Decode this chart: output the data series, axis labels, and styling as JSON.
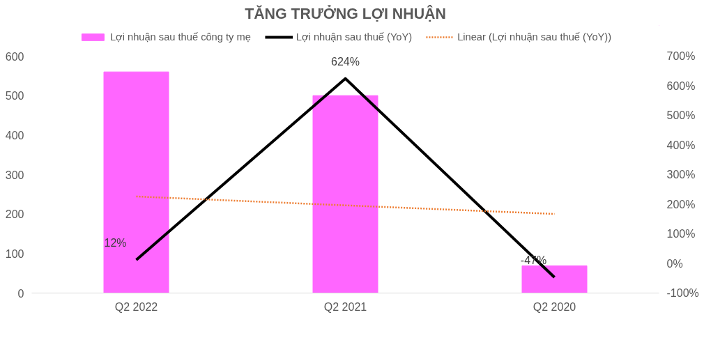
{
  "chart_data": {
    "type": "bar",
    "title": "TĂNG TRƯỞNG LỢI NHUẬN",
    "categories": [
      "Q2 2022",
      "Q2 2021",
      "Q2 2020"
    ],
    "series": [
      {
        "name": "Lợi nhuận sau thuế công ty mẹ",
        "color": "#ff66ff",
        "values": [
          560,
          500,
          69
        ]
      },
      {
        "name": "Lợi nhuận sau thuế (YoY)",
        "type": "line",
        "axis": "y2",
        "color": "#000000",
        "values": [
          12,
          624,
          -47
        ],
        "value_labels": [
          "12%",
          "624%",
          "-47%"
        ]
      },
      {
        "name": "Linear (Lợi nhuận sau thuế (YoY))",
        "type": "line",
        "axis": "y2",
        "color": "#ed7d31",
        "line_style": "dotted",
        "values": [
          226,
          196,
          167
        ]
      }
    ],
    "ylim": [
      0,
      600
    ],
    "yticks": [
      0,
      100,
      200,
      300,
      400,
      500,
      600
    ],
    "y2lim": [
      -100,
      700
    ],
    "y2ticks": [
      {
        "value": -100,
        "label": "-100%"
      },
      {
        "value": 0,
        "label": "0%"
      },
      {
        "value": 100,
        "label": "100%"
      },
      {
        "value": 200,
        "label": "200%"
      },
      {
        "value": 300,
        "label": "300%"
      },
      {
        "value": 400,
        "label": "400%"
      },
      {
        "value": 500,
        "label": "500%"
      },
      {
        "value": 600,
        "label": "600%"
      },
      {
        "value": 700,
        "label": "700%"
      }
    ],
    "grid": false,
    "legend": "top"
  }
}
